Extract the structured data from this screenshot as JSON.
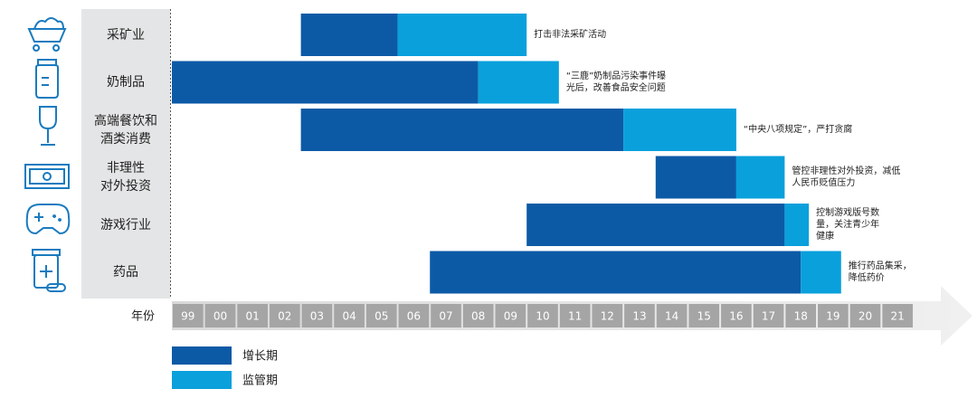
{
  "chart_data": {
    "type": "range-bar",
    "x_label": "年份",
    "categories": [
      "采矿业",
      "奶制品",
      "高端餐饮和\n酒类消费",
      "非理性\n对外投资",
      "游戏行业",
      "药品"
    ],
    "annotations": [
      "打击非法采矿活动",
      "“三鹿”奶制品污染事件曝\n光后，改善食品安全问题",
      "“中央八项规定”，严打贪腐",
      "管控非理性对外投资，减低\n人民币贬值压力",
      "控制游戏版号数\n量，关注青少年\n健康",
      "推行药品集采，\n降低药价"
    ],
    "series": [
      {
        "name": "增长期",
        "color": "#0c5aa6",
        "start": [
          2003,
          1999,
          2003,
          2014,
          2010,
          2007
        ],
        "end": [
          2006,
          2008.5,
          2013,
          2016.5,
          2018,
          2018.5
        ]
      },
      {
        "name": "监管期",
        "color": "#0aa0dc",
        "start": [
          2006,
          2008.5,
          2013,
          2016.5,
          2018,
          2018.5
        ],
        "end": [
          2010,
          2011,
          2016.5,
          2018,
          2018.75,
          2019.75
        ]
      }
    ],
    "xlim": [
      1999,
      2022
    ],
    "xticks": [
      {
        "value": 1999,
        "label": "99"
      },
      {
        "value": 2000,
        "label": "00"
      },
      {
        "value": 2001,
        "label": "01"
      },
      {
        "value": 2002,
        "label": "02"
      },
      {
        "value": 2003,
        "label": "03"
      },
      {
        "value": 2004,
        "label": "04"
      },
      {
        "value": 2005,
        "label": "05"
      },
      {
        "value": 2006,
        "label": "06"
      },
      {
        "value": 2007,
        "label": "07"
      },
      {
        "value": 2008,
        "label": "08"
      },
      {
        "value": 2009,
        "label": "09"
      },
      {
        "value": 2010,
        "label": "10"
      },
      {
        "value": 2011,
        "label": "11"
      },
      {
        "value": 2012,
        "label": "12"
      },
      {
        "value": 2013,
        "label": "13"
      },
      {
        "value": 2014,
        "label": "14"
      },
      {
        "value": 2015,
        "label": "15"
      },
      {
        "value": 2016,
        "label": "16"
      },
      {
        "value": 2017,
        "label": "17"
      },
      {
        "value": 2018,
        "label": "18"
      },
      {
        "value": 2019,
        "label": "19"
      },
      {
        "value": 2020,
        "label": "20"
      },
      {
        "value": 2021,
        "label": "21"
      }
    ]
  }
}
